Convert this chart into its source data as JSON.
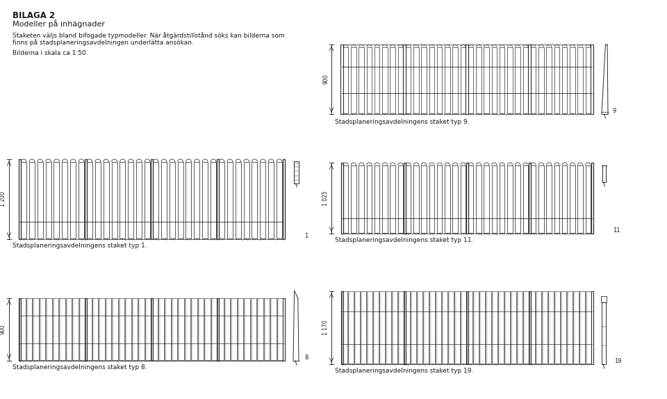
{
  "title1": "BILAGA 2",
  "title2": "Modeller på inhägnader",
  "body_line1": "Staketen väljs bland bifogade typmodeller. När åtgärdstillstånd söks kan bilderna som",
  "body_line2": "finns på stadsplaneringsavdelningen underlätta ansökan.",
  "body_line3": "Bilderna i skala ca 1:50.",
  "fences": [
    {
      "label": "Stadsplaneringsavdelningens staket typ 9.",
      "type_num": "9",
      "height_label": "900",
      "style": "rectangular"
    },
    {
      "label": "Stadsplaneringsavdelningens staket typ 1.",
      "type_num": "1",
      "height_label": "1 200",
      "style": "rounded_arch"
    },
    {
      "label": "Stadsplaneringsavdelningens staket typ 11.",
      "type_num": "11",
      "height_label": "1 025",
      "style": "rounded_arch"
    },
    {
      "label": "Stadsplaneringsavdelningens staket typ 8.",
      "type_num": "8",
      "height_label": "900",
      "style": "plank"
    },
    {
      "label": "Stadsplaneringsavdelningens staket typ 19.",
      "type_num": "19",
      "height_label": "1 170",
      "style": "plank_flat"
    }
  ],
  "bg_color": "#ffffff",
  "lc": "#2a2a2a",
  "tc": "#1a1a1a"
}
